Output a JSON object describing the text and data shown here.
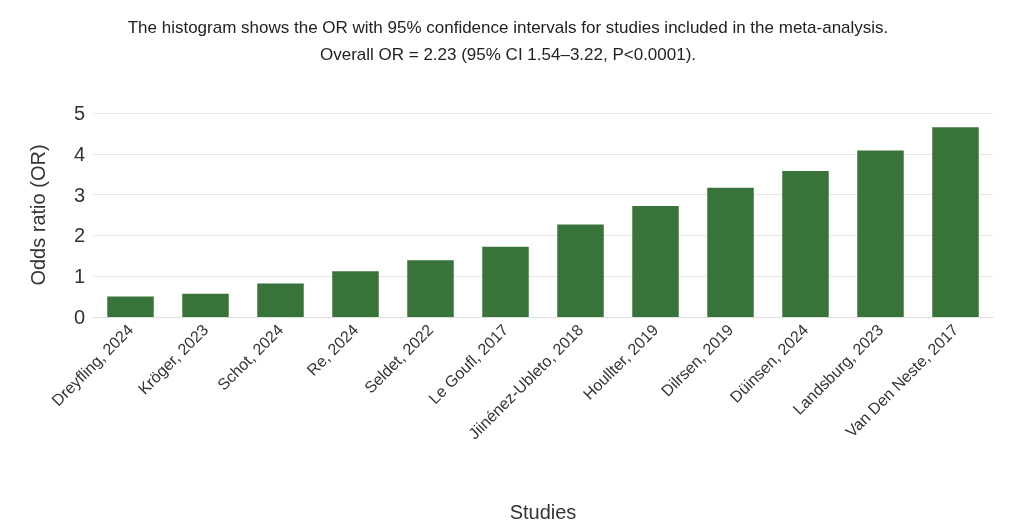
{
  "chart_data": {
    "type": "bar",
    "title": "The histogram shows the OR with 95% confidence intervals for studies included in the meta-analysis.",
    "subtitle": "Overall OR = 2.23 (95% CI 1.54–3.22, P<0.0001).",
    "xlabel": "Studies",
    "ylabel": "Odds ratio (OR)",
    "categories": [
      "Dreyfling, 2024",
      "Kröger, 2023",
      "Schot, 2024",
      "Re, 2024",
      "Seldet, 2022",
      "Le Goufl, 2017",
      "Jiinénez-Ubleto, 2018",
      "Houllter, 2019",
      "Dilrsen, 2019",
      "Düinsen, 2024",
      "Landsburg, 2023",
      "Van Den Neste, 2017"
    ],
    "values": [
      0.5,
      0.57,
      0.82,
      1.12,
      1.39,
      1.72,
      2.27,
      2.72,
      3.17,
      3.58,
      4.08,
      4.65
    ],
    "color": "#38733a",
    "ylim": [
      0,
      5
    ],
    "yticks": [
      0,
      1,
      2,
      3,
      4,
      5
    ],
    "grid": "y"
  }
}
